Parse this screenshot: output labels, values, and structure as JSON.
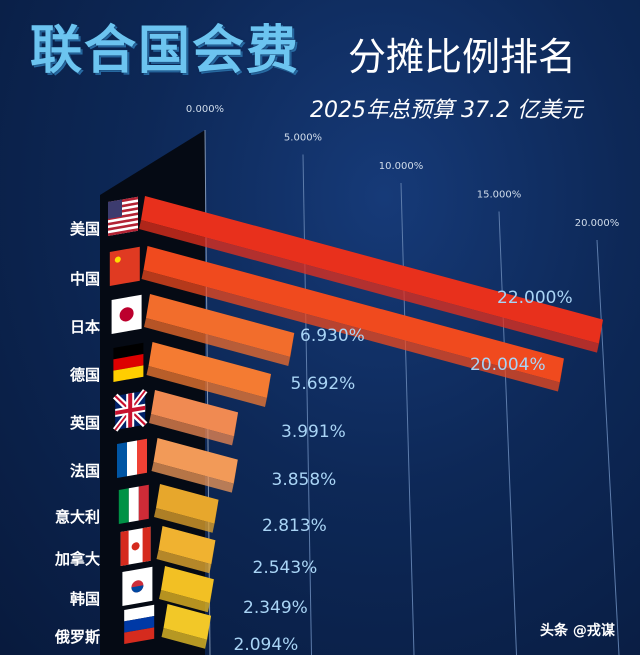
{
  "title": {
    "main": "联合国会费",
    "sub": "分摊比例排名"
  },
  "budget": "2025年总预算 37.2 亿美元",
  "watermark": "头条 @戎谋",
  "chart_data": {
    "type": "bar",
    "orientation": "horizontal-3d",
    "title": "联合国会费分摊比例排名",
    "subtitle": "2025年总预算 37.2 亿美元",
    "xlim": [
      0,
      20
    ],
    "x_ticks": [
      "0.000%",
      "5.000%",
      "10.000%",
      "15.000%",
      "20.000%"
    ],
    "x_tick_values": [
      0,
      5,
      10,
      15,
      20
    ],
    "grid": true,
    "categories": [
      "美国",
      "中国",
      "日本",
      "德国",
      "英国",
      "法国",
      "意大利",
      "加拿大",
      "韩国",
      "俄罗斯"
    ],
    "values": [
      22.0,
      20.004,
      6.93,
      5.692,
      3.991,
      3.858,
      2.813,
      2.543,
      2.349,
      2.094
    ],
    "value_labels": [
      "22.000%",
      "20.004%",
      "6.930%",
      "5.692%",
      "3.991%",
      "3.858%",
      "2.813%",
      "2.543%",
      "2.349%",
      "2.094%"
    ],
    "flags": [
      "usa-flag",
      "china-flag",
      "japan-flag",
      "germany-flag",
      "uk-flag",
      "france-flag",
      "italy-flag",
      "canada-flag",
      "korea-flag",
      "russia-flag"
    ],
    "bar_colors": [
      "#e8301c",
      "#f04a1e",
      "#f26d2c",
      "#f47b32",
      "#f08a52",
      "#f29a58",
      "#e7a72c",
      "#f0b230",
      "#f2c024",
      "#f2c828"
    ],
    "highlight_category": "中国",
    "highlight_color": "#e8302a"
  }
}
